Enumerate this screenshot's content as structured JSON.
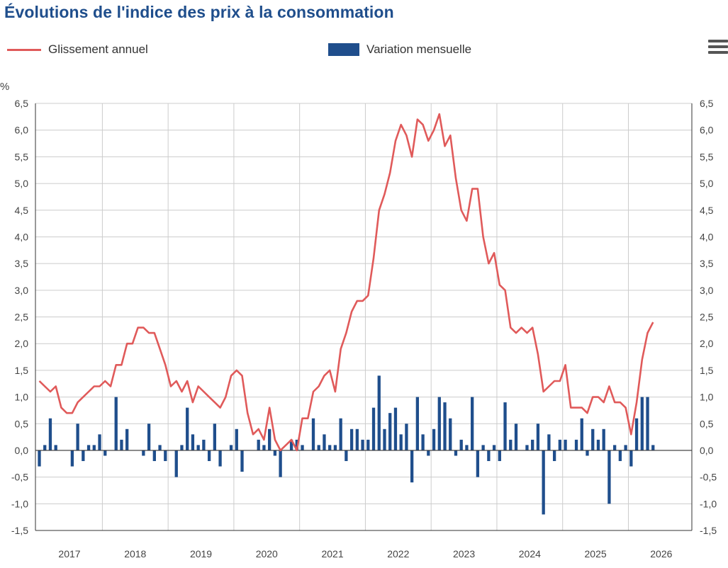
{
  "title": "Évolutions de l'indice des prix à la consommation",
  "menu_icon": "hamburger-menu-icon",
  "colors": {
    "title": "#1f4e8c",
    "line": "#e05a5a",
    "bar": "#1f4e8c",
    "grid": "#cccccc",
    "axis": "#333333"
  },
  "chart_data": {
    "type": "bar+line",
    "ylabel": "%",
    "ylim": [
      -1.5,
      6.5
    ],
    "yticks": [
      -1.5,
      -1.0,
      -0.5,
      0.0,
      0.5,
      1.0,
      1.5,
      2.0,
      2.5,
      3.0,
      3.5,
      4.0,
      4.5,
      5.0,
      5.5,
      6.0,
      6.5
    ],
    "ytick_labels": [
      "-1,5",
      "-1,0",
      "-0,5",
      "0,0",
      "0,5",
      "1,0",
      "1,5",
      "2,0",
      "2,5",
      "3,0",
      "3,5",
      "4,0",
      "4,5",
      "5,0",
      "5,5",
      "6,0",
      "6,5"
    ],
    "x_labels": [
      "2017",
      "2018",
      "2019",
      "2020",
      "2021",
      "2022",
      "2023",
      "2024",
      "2025",
      "2026"
    ],
    "grid": true,
    "legend_position": "top",
    "series": [
      {
        "name": "Glissement annuel",
        "kind": "line",
        "values": [
          1.3,
          1.2,
          1.1,
          1.2,
          0.8,
          0.7,
          0.7,
          0.9,
          1.0,
          1.1,
          1.2,
          1.2,
          1.3,
          1.2,
          1.6,
          1.6,
          2.0,
          2.0,
          2.3,
          2.3,
          2.2,
          2.2,
          1.9,
          1.6,
          1.2,
          1.3,
          1.1,
          1.3,
          0.9,
          1.2,
          1.1,
          1.0,
          0.9,
          0.8,
          1.0,
          1.4,
          1.5,
          1.4,
          0.7,
          0.3,
          0.4,
          0.2,
          0.8,
          0.2,
          0.0,
          0.1,
          0.2,
          0.0,
          0.6,
          0.6,
          1.1,
          1.2,
          1.4,
          1.5,
          1.1,
          1.9,
          2.2,
          2.6,
          2.8,
          2.8,
          2.9,
          3.6,
          4.5,
          4.8,
          5.2,
          5.8,
          6.1,
          5.9,
          5.5,
          6.2,
          6.1,
          5.8,
          6.0,
          6.3,
          5.7,
          5.9,
          5.1,
          4.5,
          4.3,
          4.9,
          4.9,
          4.0,
          3.5,
          3.7,
          3.1,
          3.0,
          2.3,
          2.2,
          2.3,
          2.2,
          2.3,
          1.8,
          1.1,
          1.2,
          1.3,
          1.3,
          1.6,
          0.8,
          0.8,
          0.8,
          0.7,
          1.0,
          1.0,
          0.9,
          1.2,
          0.9,
          0.9,
          0.8,
          0.3,
          0.9,
          1.7,
          2.2,
          2.4
        ]
      },
      {
        "name": "Variation mensuelle",
        "kind": "bar",
        "values": [
          -0.3,
          0.1,
          0.6,
          0.1,
          0.0,
          0.0,
          -0.3,
          0.5,
          -0.2,
          0.1,
          0.1,
          0.3,
          -0.1,
          0.0,
          1.0,
          0.2,
          0.4,
          0.0,
          0.0,
          -0.1,
          0.5,
          -0.2,
          0.1,
          -0.2,
          0.0,
          -0.5,
          0.1,
          0.8,
          0.3,
          0.1,
          0.2,
          -0.2,
          0.5,
          -0.3,
          0.0,
          0.1,
          0.4,
          -0.4,
          0.0,
          0.0,
          0.2,
          0.1,
          0.4,
          -0.1,
          -0.5,
          0.0,
          0.2,
          0.2,
          0.1,
          0.0,
          0.6,
          0.1,
          0.3,
          0.1,
          0.1,
          0.6,
          -0.2,
          0.4,
          0.4,
          0.2,
          0.2,
          0.8,
          1.4,
          0.4,
          0.7,
          0.8,
          0.3,
          0.5,
          -0.6,
          1.0,
          0.3,
          -0.1,
          0.4,
          1.0,
          0.9,
          0.6,
          -0.1,
          0.2,
          0.1,
          1.0,
          -0.5,
          0.1,
          -0.2,
          0.1,
          -0.2,
          0.9,
          0.2,
          0.5,
          0.0,
          0.1,
          0.2,
          0.5,
          -1.2,
          0.3,
          -0.2,
          0.2,
          0.2,
          0.0,
          0.2,
          0.6,
          -0.1,
          0.4,
          0.2,
          0.4,
          -1.0,
          0.1,
          -0.2,
          0.1,
          -0.3,
          0.6,
          1.0,
          1.0,
          0.1
        ]
      }
    ]
  }
}
